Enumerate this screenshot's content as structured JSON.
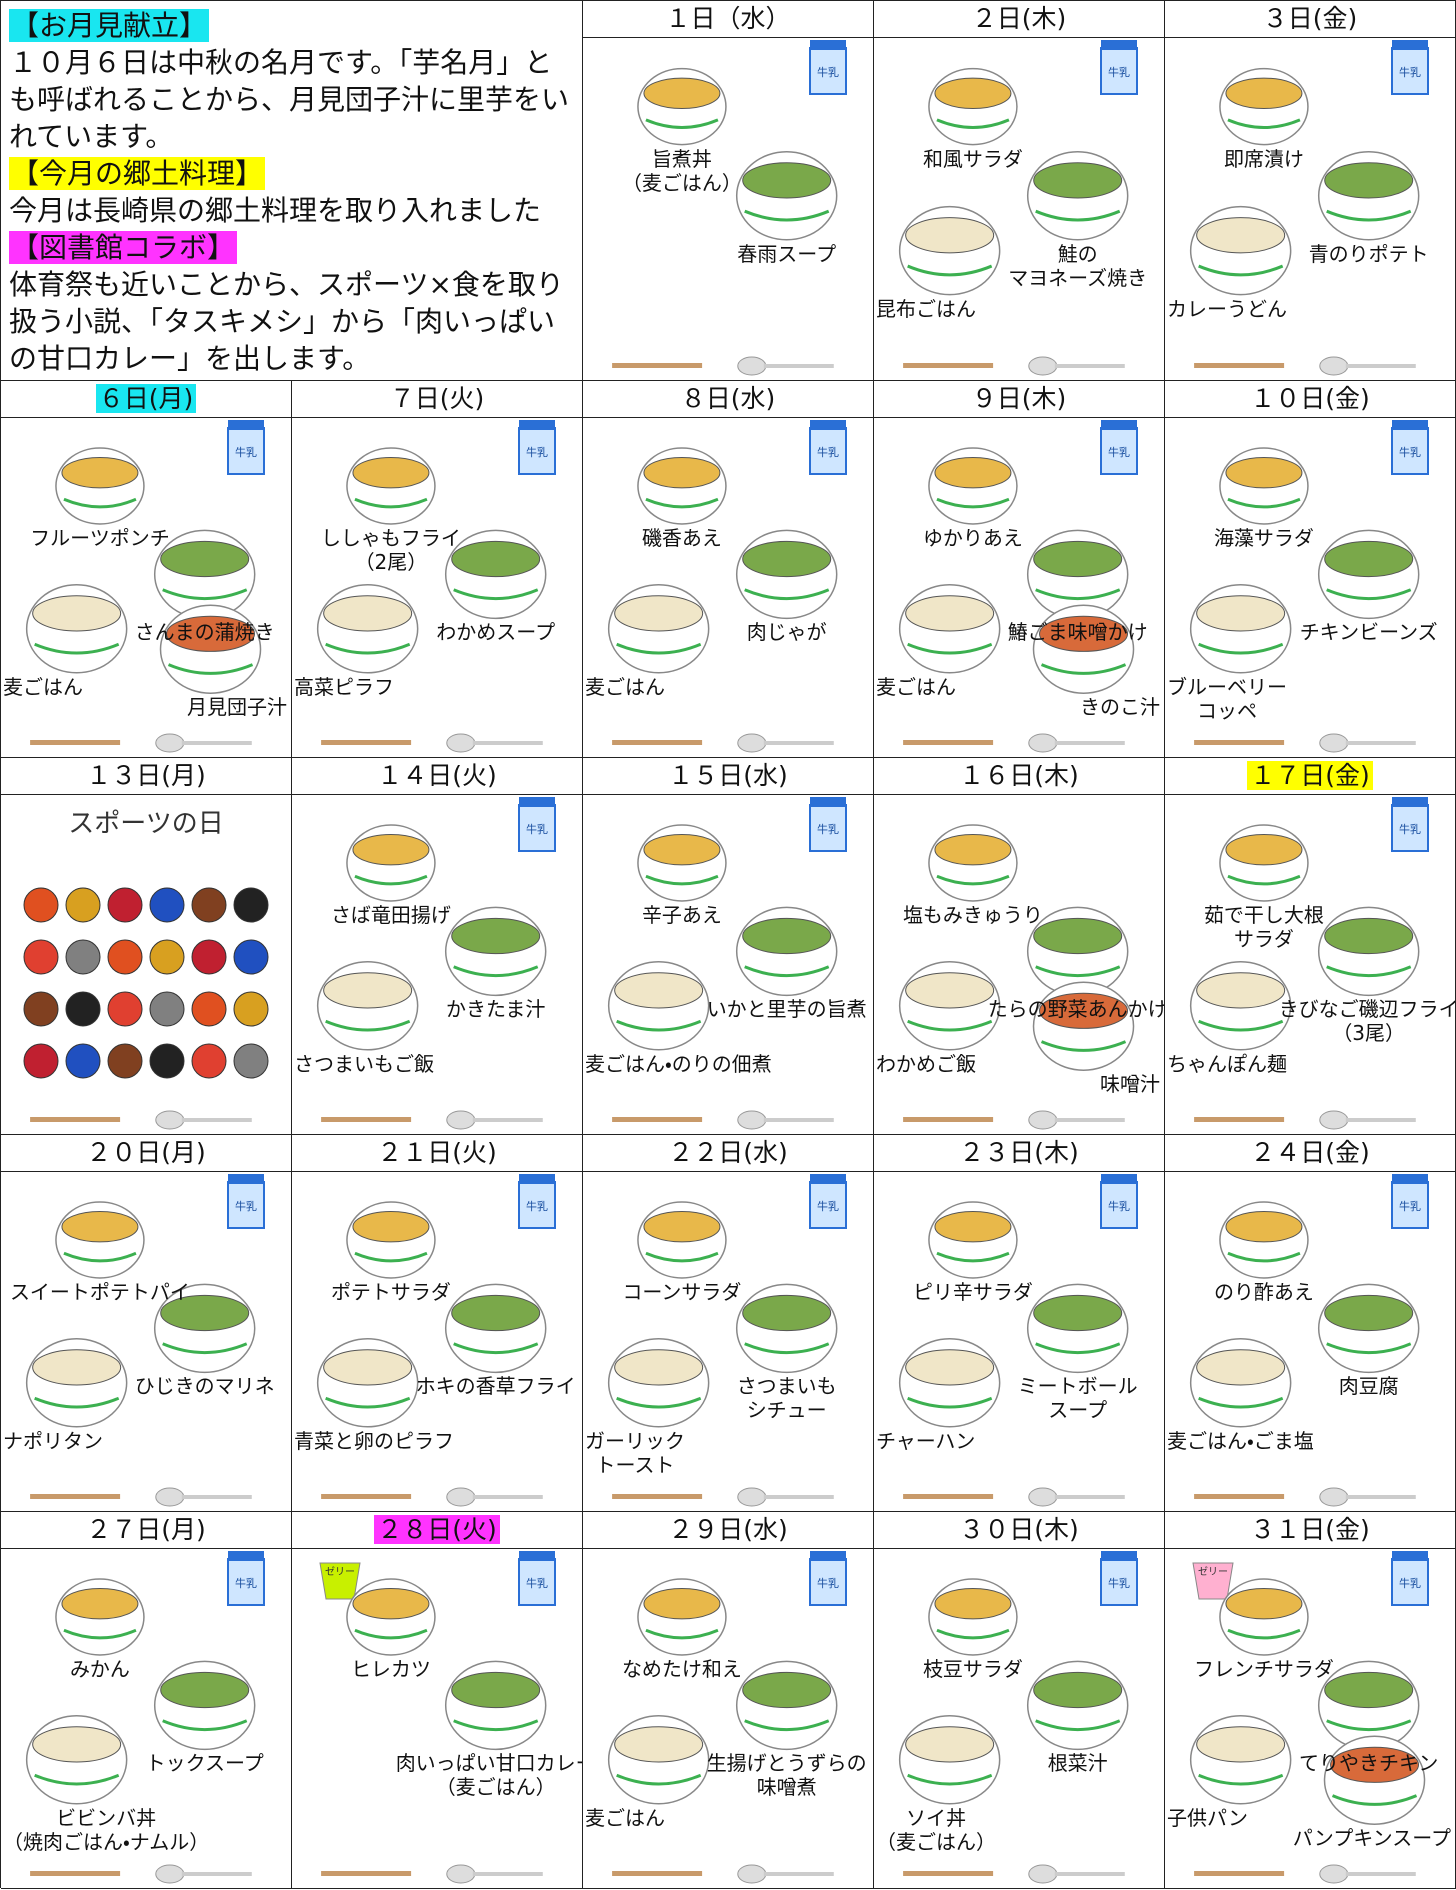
{
  "notes": [
    {
      "heading": "【お月見献立】",
      "color": "#19e6f0",
      "body": "１０月６日は中秋の名月です。「芋名月」とも呼ばれることから、月見団子汁に里芋をいれています。"
    },
    {
      "heading": "【今月の郷土料理】",
      "color": "#ffff00",
      "body": "今月は長崎県の郷土料理を取り入れました"
    },
    {
      "heading": "【図書館コラボ】",
      "color": "#ff33ff",
      "body": "体育祭も近いことから、スポーツ×食を取り扱う小説、「タスキメシ」から「肉いっぱいの甘口カレー」を出します。"
    }
  ],
  "milk_label": "牛乳",
  "jelly_label": "ゼリー",
  "days": [
    {
      "date": "１日（水）",
      "milk": true,
      "dishes": [
        [
          "旨煮丼",
          "（麦ごはん）"
        ],
        "春雨スープ"
      ]
    },
    {
      "date": "２日(木)",
      "milk": true,
      "dishes": [
        "和風サラダ",
        [
          "鮭の",
          "マヨネーズ焼き"
        ],
        "昆布ごはん"
      ]
    },
    {
      "date": "３日(金)",
      "milk": true,
      "dishes": [
        "即席漬け",
        "青のりポテト",
        "カレーうどん"
      ]
    },
    {
      "date": "６日(月)",
      "highlight": "#19e6f0",
      "milk": true,
      "dishes": [
        "フルーツポンチ",
        "さんまの蒲焼き",
        "麦ごはん",
        "月見団子汁"
      ]
    },
    {
      "date": "７日(火)",
      "milk": true,
      "dishes": [
        [
          "ししゃもフライ",
          "（2尾）"
        ],
        "わかめスープ",
        "高菜ピラフ"
      ]
    },
    {
      "date": "８日(水)",
      "milk": true,
      "dishes": [
        "磯香あえ",
        "肉じゃが",
        "麦ごはん"
      ]
    },
    {
      "date": "９日(木)",
      "milk": true,
      "dishes": [
        "ゆかりあえ",
        "鰆ごま味噌かけ",
        "麦ごはん",
        "きのこ汁"
      ]
    },
    {
      "date": "１０日(金)",
      "milk": true,
      "dishes": [
        "海藻サラダ",
        "チキンビーンズ",
        [
          "ブルーベリー",
          "コッペ"
        ]
      ]
    },
    {
      "date": "１３日(月)",
      "milk": false,
      "note": "スポーツの日",
      "dishes": []
    },
    {
      "date": "１４日(火)",
      "milk": true,
      "dishes": [
        "さば竜田揚げ",
        "かきたま汁",
        "さつまいもご飯"
      ]
    },
    {
      "date": "１５日(水)",
      "milk": true,
      "dishes": [
        "辛子あえ",
        "いかと里芋の旨煮",
        "麦ごはん・のりの佃煮"
      ]
    },
    {
      "date": "１６日(木)",
      "milk": false,
      "dishes": [
        "塩もみきゅうり",
        "たらの野菜あんかけ",
        "わかめご飯",
        "味噌汁"
      ]
    },
    {
      "date": "１７日(金)",
      "highlight": "#ffff00",
      "milk": true,
      "dishes": [
        [
          "茹で干し大根",
          "サラダ"
        ],
        [
          "きびなご磯辺フライ",
          "（3尾）"
        ],
        "ちゃんぽん麺"
      ]
    },
    {
      "date": "２０日(月)",
      "milk": true,
      "dishes": [
        "スイートポテトパイ",
        "ひじきのマリネ",
        "ナポリタン"
      ]
    },
    {
      "date": "２１日(火)",
      "milk": true,
      "dishes": [
        "ポテトサラダ",
        "ホキの香草フライ",
        "青菜と卵のピラフ"
      ]
    },
    {
      "date": "２２日(水)",
      "milk": true,
      "dishes": [
        "コーンサラダ",
        [
          "さつまいも",
          "シチュー"
        ],
        [
          "ガーリック",
          "トースト"
        ]
      ]
    },
    {
      "date": "２３日(木)",
      "milk": true,
      "dishes": [
        "ピリ辛サラダ",
        [
          "ミートボール",
          "スープ"
        ],
        "チャーハン"
      ]
    },
    {
      "date": "２４日(金)",
      "milk": true,
      "dishes": [
        "のり酢あえ",
        "肉豆腐",
        "麦ごはん・ごま塩"
      ]
    },
    {
      "date": "２７日(月)",
      "milk": true,
      "dishes": [
        "みかん",
        "トックスープ",
        [
          "ビビンバ丼",
          "（焼肉ごはん・ナムル）"
        ]
      ]
    },
    {
      "date": "２８日(火)",
      "highlight": "#ff33ff",
      "milk": true,
      "jelly": "#c8f000",
      "dishes": [
        "ヒレカツ",
        [
          "肉いっぱい甘口カレー",
          "（麦ごはん）"
        ]
      ]
    },
    {
      "date": "２９日(水)",
      "milk": true,
      "dishes": [
        "なめたけ和え",
        [
          "生揚げとうずらの",
          "味噌煮"
        ],
        "麦ごはん"
      ]
    },
    {
      "date": "３０日(木)",
      "milk": true,
      "dishes": [
        "枝豆サラダ",
        "根菜汁",
        [
          "ソイ丼",
          "（麦ごはん）"
        ]
      ]
    },
    {
      "date": "３１日(金)",
      "milk": true,
      "jelly": "#ffb0d0",
      "dishes": [
        "フレンチサラダ",
        "てりやきチキン",
        "子供パン",
        "パンプキンスープ"
      ]
    }
  ]
}
